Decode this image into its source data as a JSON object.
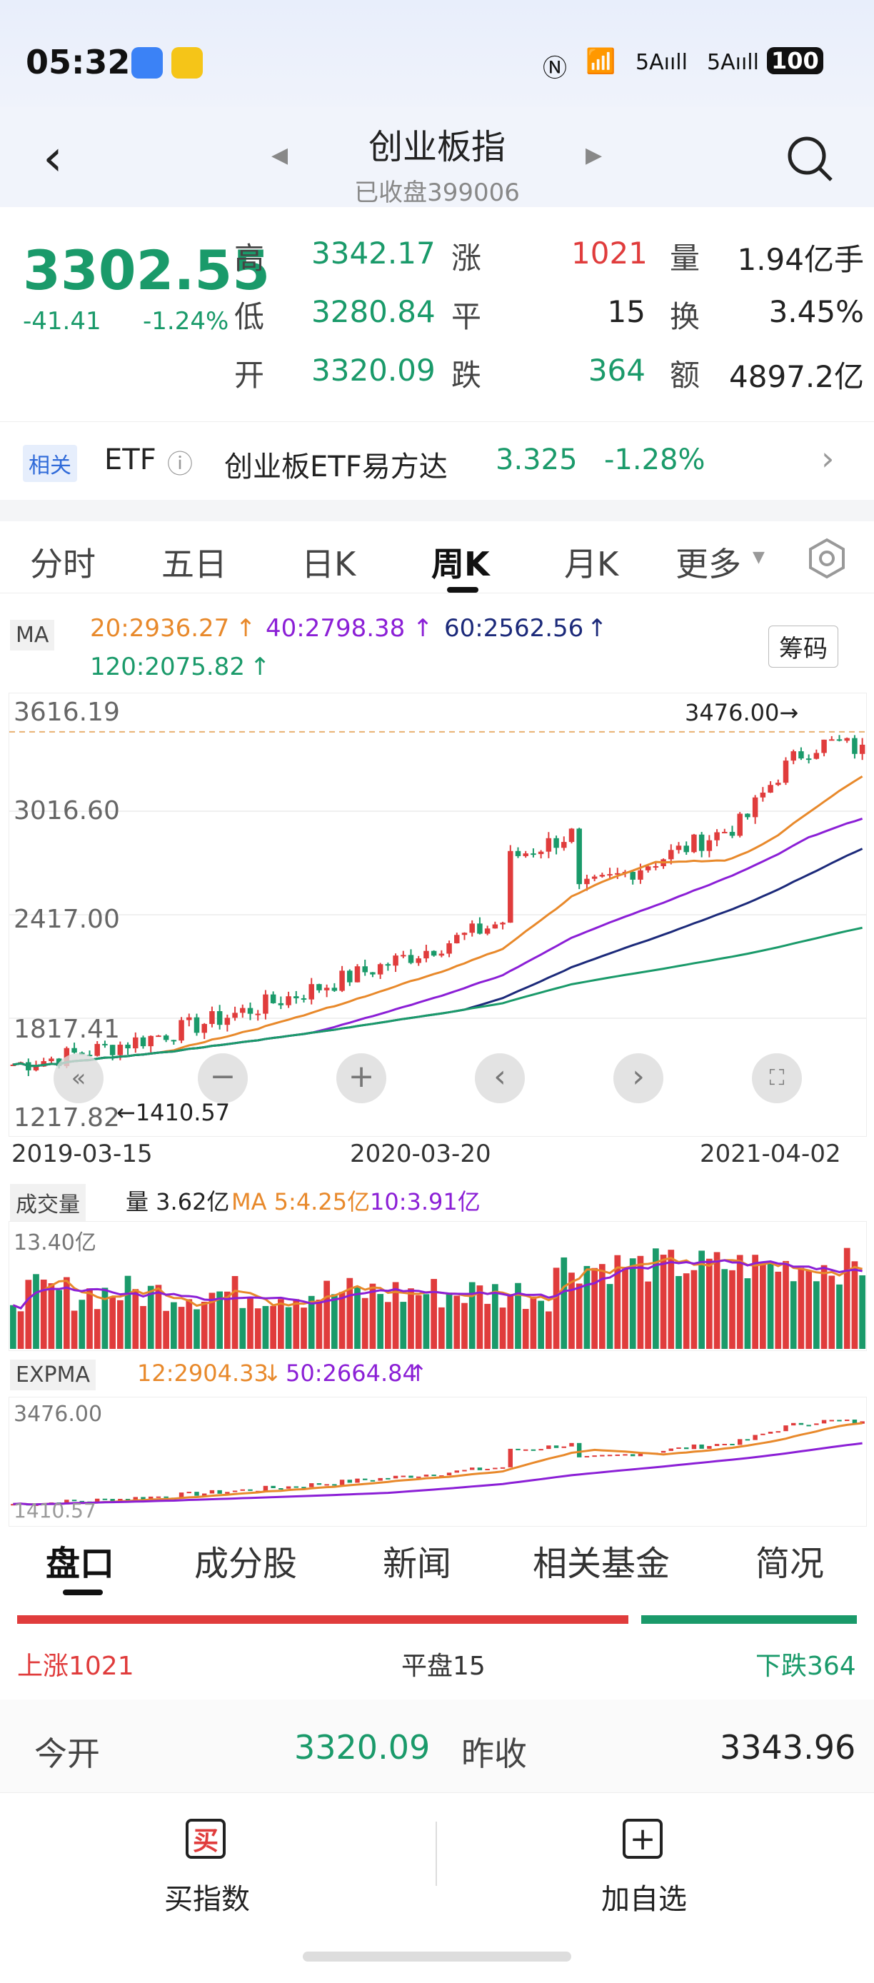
{
  "status_bar": {
    "time": "05:32",
    "battery": "100"
  },
  "header": {
    "title": "创业板指",
    "subtitle": "已收盘399006"
  },
  "quote": {
    "price": "3302.55",
    "change": "-41.41",
    "change_pct": "-1.24%",
    "labels": {
      "high": "高",
      "low": "低",
      "open": "开",
      "up": "涨",
      "flat": "平",
      "down": "跌",
      "volume": "量",
      "turnover": "换",
      "amount": "额"
    },
    "high": "3342.17",
    "low": "3280.84",
    "open": "3320.09",
    "up_count": "1021",
    "flat_count": "15",
    "down_count": "364",
    "volume": "1.94亿手",
    "turnover_rate": "3.45%",
    "amount": "4897.2亿"
  },
  "etf": {
    "tag": "相关",
    "label": "ETF",
    "name": "创业板ETF易方达",
    "price": "3.325",
    "pct": "-1.28%"
  },
  "tabs": [
    "分时",
    "五日",
    "日K",
    "周K",
    "月K",
    "更多"
  ],
  "active_tab": "周K",
  "ma": {
    "label": "MA",
    "ma20": "20:2936.27",
    "ma40": "40:2798.38",
    "ma60": "60:2562.56",
    "ma120": "120:2075.82",
    "chips_button": "筹码"
  },
  "colors": {
    "ma20": "#e8892b",
    "ma40": "#8b1fd6",
    "ma60": "#1c2a7a",
    "ma120": "#1a9a6a",
    "up": "#e03c3c",
    "down": "#1a9a6a"
  },
  "kline": {
    "y_ticks": [
      "3616.19",
      "3016.60",
      "2417.00",
      "1817.41",
      "1217.82"
    ],
    "max_label": "3476.00→",
    "min_label": "←1410.57",
    "dates": [
      "2019-03-15",
      "2020-03-20",
      "2021-04-02"
    ]
  },
  "volume": {
    "label": "成交量",
    "vol": "量 3.62亿",
    "ma5": "MA 5:4.25亿",
    "ma10": "10:3.91亿",
    "y_max": "13.40亿"
  },
  "expma": {
    "label": "EXPMA",
    "e12": "12:2904.33",
    "e50": "50:2664.84",
    "y_max": "3476.00",
    "y_min": "1410.57"
  },
  "bottom_tabs": [
    "盘口",
    "成分股",
    "新闻",
    "相关基金",
    "简况"
  ],
  "summary": {
    "rise": "上涨1021",
    "flat": "平盘15",
    "fall": "下跌364"
  },
  "open_row": {
    "open_label": "今开",
    "open_value": "3320.09",
    "prev_label": "昨收",
    "prev_value": "3343.96"
  },
  "actions": {
    "buy": "买指数",
    "add": "加自选",
    "buy_icon": "买"
  }
}
